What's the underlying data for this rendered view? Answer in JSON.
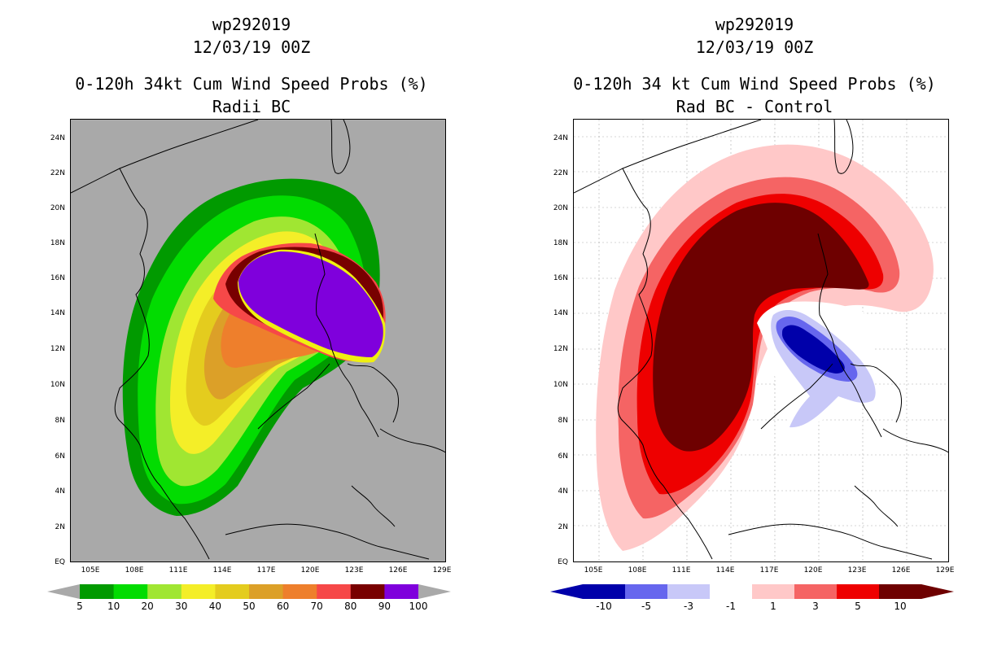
{
  "left": {
    "title1": "wp292019",
    "title2": "12/03/19 00Z",
    "title3": "0-120h 34kt Cum Wind Speed Probs (%)",
    "title4": "Radii BC",
    "colorbar": {
      "colors": [
        "#019a00",
        "#02dc01",
        "#a0e632",
        "#f4ee28",
        "#e4cc1e",
        "#dca028",
        "#ee7f2c",
        "#f64848",
        "#780000",
        "#7f00dc"
      ],
      "labels": [
        "5",
        "10",
        "20",
        "30",
        "40",
        "50",
        "60",
        "70",
        "80",
        "90",
        "100"
      ]
    }
  },
  "right": {
    "title1": "wp292019",
    "title2": "12/03/19 00Z",
    "title3": "0-120h 34 kt Cum Wind Speed Probs (%)",
    "title4": "Rad BC - Control",
    "colorbar": {
      "colors": [
        "#0000aa",
        "#6666ee",
        "#c8c8f8",
        "#ffffff",
        "#ffc8c8",
        "#f56464",
        "#ee0000",
        "#6e0000"
      ],
      "labels": [
        "-10",
        "-5",
        "-3",
        "-1",
        "1",
        "3",
        "5",
        "10"
      ]
    }
  },
  "axes": {
    "lat_labels": [
      "24N",
      "22N",
      "20N",
      "18N",
      "16N",
      "14N",
      "12N",
      "10N",
      "8N",
      "6N",
      "4N",
      "2N",
      "EQ"
    ],
    "lon_labels": [
      "105E",
      "108E",
      "111E",
      "114E",
      "117E",
      "120E",
      "123E",
      "126E",
      "129E"
    ]
  }
}
